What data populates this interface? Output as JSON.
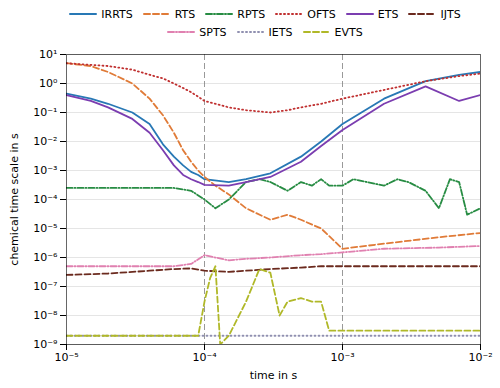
{
  "chart_data": {
    "type": "line",
    "xlabel": "time in s",
    "ylabel": "chemical time scale in s",
    "log": true,
    "grid": "y",
    "legend": "top",
    "xlim": [
      1e-05,
      0.01
    ],
    "ylim": [
      1e-09,
      10.0
    ],
    "xticks": [
      {
        "value": 1e-05,
        "label": "10⁻⁵"
      },
      {
        "value": 0.0001,
        "label": "10⁻⁴"
      },
      {
        "value": 0.001,
        "label": "10⁻³"
      },
      {
        "value": 0.01,
        "label": "10⁻²"
      }
    ],
    "yticks": [
      {
        "value": 1e-09,
        "label": "10⁻⁹"
      },
      {
        "value": 1e-08,
        "label": "10⁻⁸"
      },
      {
        "value": 1e-07,
        "label": "10⁻⁷"
      },
      {
        "value": 1e-06,
        "label": "10⁻⁶"
      },
      {
        "value": 1e-05,
        "label": "10⁻⁵"
      },
      {
        "value": 0.0001,
        "label": "10⁻⁴"
      },
      {
        "value": 0.001,
        "label": "10⁻³"
      },
      {
        "value": 0.01,
        "label": "10⁻²"
      },
      {
        "value": 0.1,
        "label": "10⁻¹"
      },
      {
        "value": 1.0,
        "label": "10⁰"
      },
      {
        "value": 10.0,
        "label": "10¹"
      }
    ],
    "vlines": [
      {
        "x": 0.0001,
        "color": "gray",
        "line_style": "dashed"
      },
      {
        "x": 0.001,
        "color": "gray",
        "line_style": "dashed"
      }
    ],
    "series": [
      {
        "name": "IRRTS",
        "color": "#2878b5",
        "line_style": "solid",
        "x": [
          1e-05,
          1.5e-05,
          2e-05,
          3e-05,
          4e-05,
          5e-05,
          6e-05,
          7e-05,
          8e-05,
          9e-05,
          0.0001,
          0.00015,
          0.0002,
          0.0003,
          0.0005,
          0.0007,
          0.001,
          0.002,
          0.004,
          0.007,
          0.01
        ],
        "values": [
          0.45,
          0.3,
          0.2,
          0.1,
          0.04,
          0.008,
          0.003,
          0.0015,
          0.0009,
          0.0007,
          0.0005,
          0.0004,
          0.0005,
          0.0008,
          0.003,
          0.01,
          0.04,
          0.3,
          1.2,
          2.0,
          2.5
        ]
      },
      {
        "name": "RTS",
        "color": "#e07b38",
        "line_style": "dashed",
        "x": [
          1e-05,
          1.5e-05,
          2e-05,
          3e-05,
          4e-05,
          5e-05,
          6e-05,
          7e-05,
          8e-05,
          9e-05,
          0.0001,
          0.00012,
          0.00015,
          0.0002,
          0.0003,
          0.0004,
          0.0005,
          0.0007,
          0.001,
          0.002,
          0.005,
          0.01
        ],
        "values": [
          5.0,
          4.0,
          2.5,
          1.0,
          0.3,
          0.08,
          0.02,
          0.005,
          0.002,
          0.001,
          0.0006,
          0.0003,
          0.00015,
          5e-05,
          2e-05,
          3e-05,
          2e-05,
          1e-05,
          2e-06,
          3e-06,
          5e-06,
          7e-06
        ]
      },
      {
        "name": "RPTS",
        "color": "#278c43",
        "line_style": "dashdot",
        "x": [
          1e-05,
          2e-05,
          4e-05,
          6e-05,
          8e-05,
          0.0001,
          0.00012,
          0.00015,
          0.0002,
          0.00025,
          0.0003,
          0.0004,
          0.0005,
          0.0006,
          0.0007,
          0.0008,
          0.001,
          0.0012,
          0.0015,
          0.002,
          0.0025,
          0.003,
          0.004,
          0.005,
          0.006,
          0.007,
          0.008,
          0.01
        ],
        "values": [
          0.00025,
          0.00025,
          0.00025,
          0.00025,
          0.0002,
          0.0001,
          5e-05,
          0.0001,
          0.0004,
          0.0005,
          0.0004,
          0.0002,
          0.0004,
          0.0003,
          0.0005,
          0.0003,
          0.0003,
          0.0005,
          0.0004,
          0.0003,
          0.0005,
          0.0004,
          0.0002,
          5e-05,
          0.0005,
          0.0004,
          3e-05,
          5e-05
        ]
      },
      {
        "name": "OFTS",
        "color": "#c03030",
        "line_style": "dotted",
        "x": [
          1e-05,
          2e-05,
          3e-05,
          4e-05,
          5e-05,
          6e-05,
          7e-05,
          8e-05,
          9e-05,
          0.0001,
          0.00015,
          0.0002,
          0.0003,
          0.0004,
          0.0005,
          0.0007,
          0.001,
          0.002,
          0.004,
          0.007,
          0.01
        ],
        "values": [
          5.0,
          4.0,
          3.0,
          2.0,
          1.5,
          1.0,
          0.7,
          0.5,
          0.35,
          0.25,
          0.15,
          0.12,
          0.1,
          0.12,
          0.15,
          0.2,
          0.3,
          0.6,
          1.2,
          1.8,
          2.2
        ]
      },
      {
        "name": "ETS",
        "color": "#7b3db0",
        "line_style": "solid",
        "x": [
          1e-05,
          1.5e-05,
          2e-05,
          3e-05,
          4e-05,
          5e-05,
          6e-05,
          7e-05,
          8e-05,
          9e-05,
          0.0001,
          0.00015,
          0.0002,
          0.0003,
          0.0005,
          0.0007,
          0.001,
          0.002,
          0.004,
          0.007,
          0.01
        ],
        "values": [
          0.4,
          0.25,
          0.15,
          0.06,
          0.02,
          0.005,
          0.0015,
          0.0007,
          0.0005,
          0.0004,
          0.00032,
          0.0003,
          0.0004,
          0.0006,
          0.002,
          0.007,
          0.025,
          0.2,
          0.8,
          0.25,
          0.4
        ]
      },
      {
        "name": "IJTS",
        "color": "#6b2a1e",
        "line_style": "dashed",
        "x": [
          1e-05,
          2e-05,
          4e-05,
          6e-05,
          8e-05,
          0.0001,
          0.00015,
          0.0002,
          0.0003,
          0.0005,
          0.0007,
          0.001,
          0.002,
          0.005,
          0.01
        ],
        "values": [
          2.5e-07,
          2.8e-07,
          3.5e-07,
          4e-07,
          4.2e-07,
          3.5e-07,
          3.2e-07,
          3.5e-07,
          4e-07,
          4.5e-07,
          5e-07,
          5e-07,
          5e-07,
          5e-07,
          5e-07
        ]
      },
      {
        "name": "SPTS",
        "color": "#e080b0",
        "line_style": "dashdot",
        "x": [
          1e-05,
          2e-05,
          4e-05,
          6e-05,
          8e-05,
          0.0001,
          0.00015,
          0.0002,
          0.0003,
          0.0005,
          0.0007,
          0.001,
          0.002,
          0.005,
          0.01
        ],
        "values": [
          5e-07,
          5e-07,
          5e-07,
          5e-07,
          6e-07,
          1.2e-06,
          8e-07,
          9e-07,
          1e-06,
          1.2e-06,
          1.3e-06,
          1.5e-06,
          2e-06,
          2.2e-06,
          2.5e-06
        ]
      },
      {
        "name": "IETS",
        "color": "#9090b0",
        "line_style": "dotted",
        "x": [
          1e-05,
          0.01
        ],
        "values": [
          2e-09,
          2e-09
        ]
      },
      {
        "name": "EVTS",
        "color": "#b0b828",
        "line_style": "dashed",
        "x": [
          1e-05,
          2e-05,
          3e-05,
          4e-05,
          5e-05,
          6e-05,
          7e-05,
          8e-05,
          9e-05,
          0.0001,
          0.00011,
          0.00012,
          0.00013,
          0.00015,
          0.0002,
          0.00025,
          0.0003,
          0.00035,
          0.0004,
          0.0005,
          0.0006,
          0.0007,
          0.0008,
          0.0009,
          0.001,
          0.0015,
          0.002,
          0.003,
          0.005,
          0.007,
          0.01
        ],
        "values": [
          2e-09,
          2e-09,
          2e-09,
          2e-09,
          2e-09,
          2e-09,
          2e-09,
          2e-09,
          2e-09,
          3e-08,
          2e-07,
          5e-07,
          1e-09,
          2e-09,
          3e-08,
          4e-07,
          3e-07,
          1e-08,
          3e-08,
          4e-08,
          3e-08,
          3e-08,
          3e-09,
          3e-09,
          3e-09,
          3e-09,
          3e-09,
          3e-09,
          3e-09,
          3e-09,
          3e-09
        ]
      }
    ]
  }
}
